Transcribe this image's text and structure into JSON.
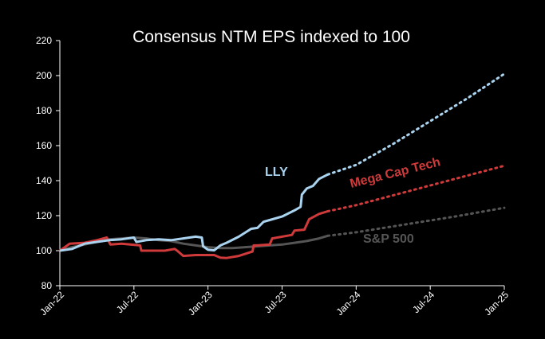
{
  "chart_data": {
    "type": "line",
    "title": "Consensus NTM EPS indexed to 100",
    "xlabel": "",
    "ylabel": "",
    "ylim": [
      80,
      220
    ],
    "yticks": [
      "80",
      "100",
      "120",
      "140",
      "160",
      "180",
      "200",
      "220"
    ],
    "yticks_values": [
      80,
      100,
      120,
      140,
      160,
      180,
      200,
      220
    ],
    "xlim": [
      0,
      36
    ],
    "xticks": [
      "Jan-22",
      "Jul-22",
      "Jan-23",
      "Jul-23",
      "Jan-24",
      "Jul-24",
      "Jan-25"
    ],
    "xticks_values": [
      0,
      6,
      12,
      18,
      24,
      30,
      36
    ],
    "grid": false,
    "legend": "inline labels",
    "series": [
      {
        "name": "S&P 500",
        "label": "S&P 500",
        "color": "#555555",
        "actual": [
          [
            0,
            100
          ],
          [
            1,
            102
          ],
          [
            2,
            103.5
          ],
          [
            3,
            105
          ],
          [
            4,
            106.5
          ],
          [
            5,
            107
          ],
          [
            6,
            107.5
          ],
          [
            7,
            107
          ],
          [
            8,
            106
          ],
          [
            9,
            105.5
          ],
          [
            10,
            104
          ],
          [
            11,
            103
          ],
          [
            12,
            102
          ],
          [
            13,
            101.5
          ],
          [
            14,
            101.5
          ],
          [
            15,
            102
          ],
          [
            16,
            102.5
          ],
          [
            17,
            103
          ],
          [
            18,
            103.5
          ],
          [
            19,
            104.5
          ],
          [
            20,
            105.5
          ],
          [
            21,
            107
          ],
          [
            21.7,
            108.5
          ]
        ],
        "forecast": [
          [
            21.7,
            108.5
          ],
          [
            24,
            110.5
          ],
          [
            28,
            115
          ],
          [
            32,
            119.5
          ],
          [
            36,
            124.5
          ]
        ]
      },
      {
        "name": "Mega Cap Tech",
        "label": "Mega Cap Tech",
        "color": "#d03a3a",
        "actual": [
          [
            0,
            100
          ],
          [
            0.8,
            104
          ],
          [
            2,
            104.5
          ],
          [
            3,
            106
          ],
          [
            3.8,
            107.5
          ],
          [
            4.1,
            103.5
          ],
          [
            5,
            104
          ],
          [
            6.5,
            103
          ],
          [
            6.6,
            100
          ],
          [
            8.5,
            100
          ],
          [
            9.3,
            101
          ],
          [
            9.5,
            100
          ],
          [
            10,
            97
          ],
          [
            11,
            97.5
          ],
          [
            12.5,
            97.5
          ],
          [
            13,
            96
          ],
          [
            13.5,
            95.8
          ],
          [
            14.5,
            97
          ],
          [
            15.6,
            99.5
          ],
          [
            15.7,
            103
          ],
          [
            16,
            103
          ],
          [
            17,
            103.5
          ],
          [
            17.2,
            107
          ],
          [
            18.8,
            109
          ],
          [
            19,
            111.5
          ],
          [
            19.8,
            112
          ],
          [
            20.2,
            118
          ],
          [
            21,
            121
          ],
          [
            21.7,
            122.5
          ]
        ],
        "forecast": [
          [
            21.7,
            122.5
          ],
          [
            24,
            126
          ],
          [
            28,
            133.5
          ],
          [
            32,
            141
          ],
          [
            36,
            148.5
          ]
        ]
      },
      {
        "name": "LLY",
        "label": "LLY",
        "color": "#a9d3ef",
        "actual": [
          [
            0,
            100
          ],
          [
            1,
            101
          ],
          [
            2,
            104
          ],
          [
            3,
            105
          ],
          [
            4,
            106
          ],
          [
            5,
            106.5
          ],
          [
            6,
            107.5
          ],
          [
            6.2,
            105
          ],
          [
            7,
            106
          ],
          [
            8,
            106.5
          ],
          [
            9,
            106
          ],
          [
            10,
            107
          ],
          [
            11,
            108
          ],
          [
            11.5,
            107.5
          ],
          [
            11.6,
            102.5
          ],
          [
            12,
            100.5
          ],
          [
            12.5,
            100.2
          ],
          [
            13,
            103
          ],
          [
            13.5,
            104.5
          ],
          [
            14.5,
            108
          ],
          [
            15.5,
            112.5
          ],
          [
            16,
            113
          ],
          [
            16.5,
            116.5
          ],
          [
            17,
            117.5
          ],
          [
            18,
            119.5
          ],
          [
            19,
            123
          ],
          [
            19.5,
            125
          ],
          [
            19.6,
            132
          ],
          [
            20,
            135.5
          ],
          [
            20.5,
            137
          ],
          [
            21,
            141
          ],
          [
            21.7,
            143.5
          ]
        ],
        "forecast": [
          [
            21.7,
            143.5
          ],
          [
            24,
            149
          ],
          [
            27,
            161
          ],
          [
            30,
            174
          ],
          [
            33,
            187
          ],
          [
            36,
            201
          ]
        ]
      }
    ]
  }
}
